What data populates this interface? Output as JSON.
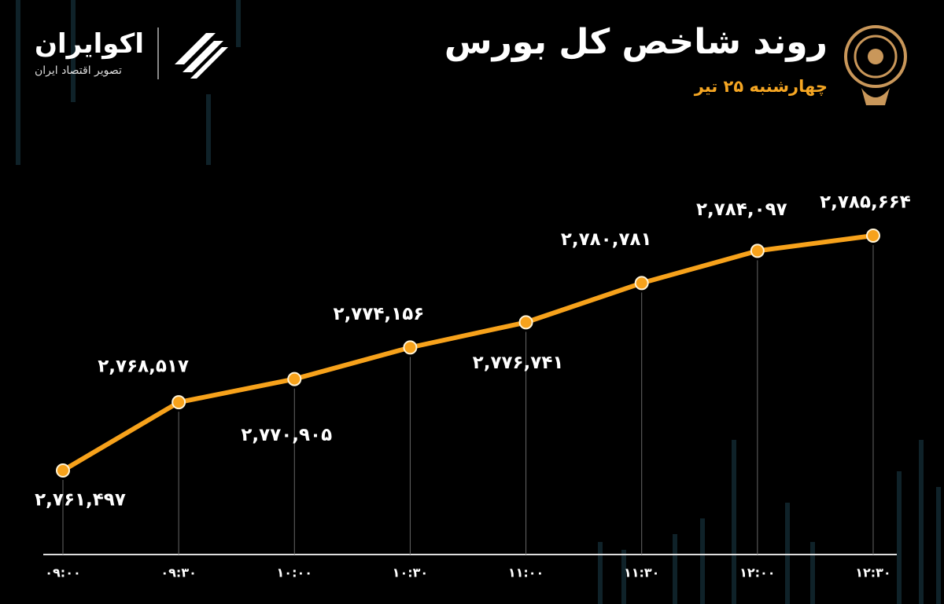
{
  "brand": {
    "name": "اکوایران",
    "tagline": "تصویر اقتصاد ایران"
  },
  "chart_data": {
    "type": "line",
    "title": "روند شاخص کل بورس",
    "subtitle": "چهارشنبه ۲۵ تیر",
    "categories": [
      "۰۹:۰۰",
      "۰۹:۳۰",
      "۱۰:۰۰",
      "۱۰:۳۰",
      "۱۱:۰۰",
      "۱۱:۳۰",
      "۱۲:۰۰",
      "۱۲:۳۰"
    ],
    "values": [
      2761497,
      2768517,
      2770905,
      2774156,
      2776741,
      2780781,
      2784097,
      2785664
    ],
    "value_labels": [
      "۲,۷۶۱,۴۹۷",
      "۲,۷۶۸,۵۱۷",
      "۲,۷۷۰,۹۰۵",
      "۲,۷۷۴,۱۵۶",
      "۲,۷۷۶,۷۴۱",
      "۲,۷۸۰,۷۸۱",
      "۲,۷۸۴,۰۹۷",
      "۲,۷۸۵,۶۶۴"
    ],
    "color": "#f7a21b"
  }
}
